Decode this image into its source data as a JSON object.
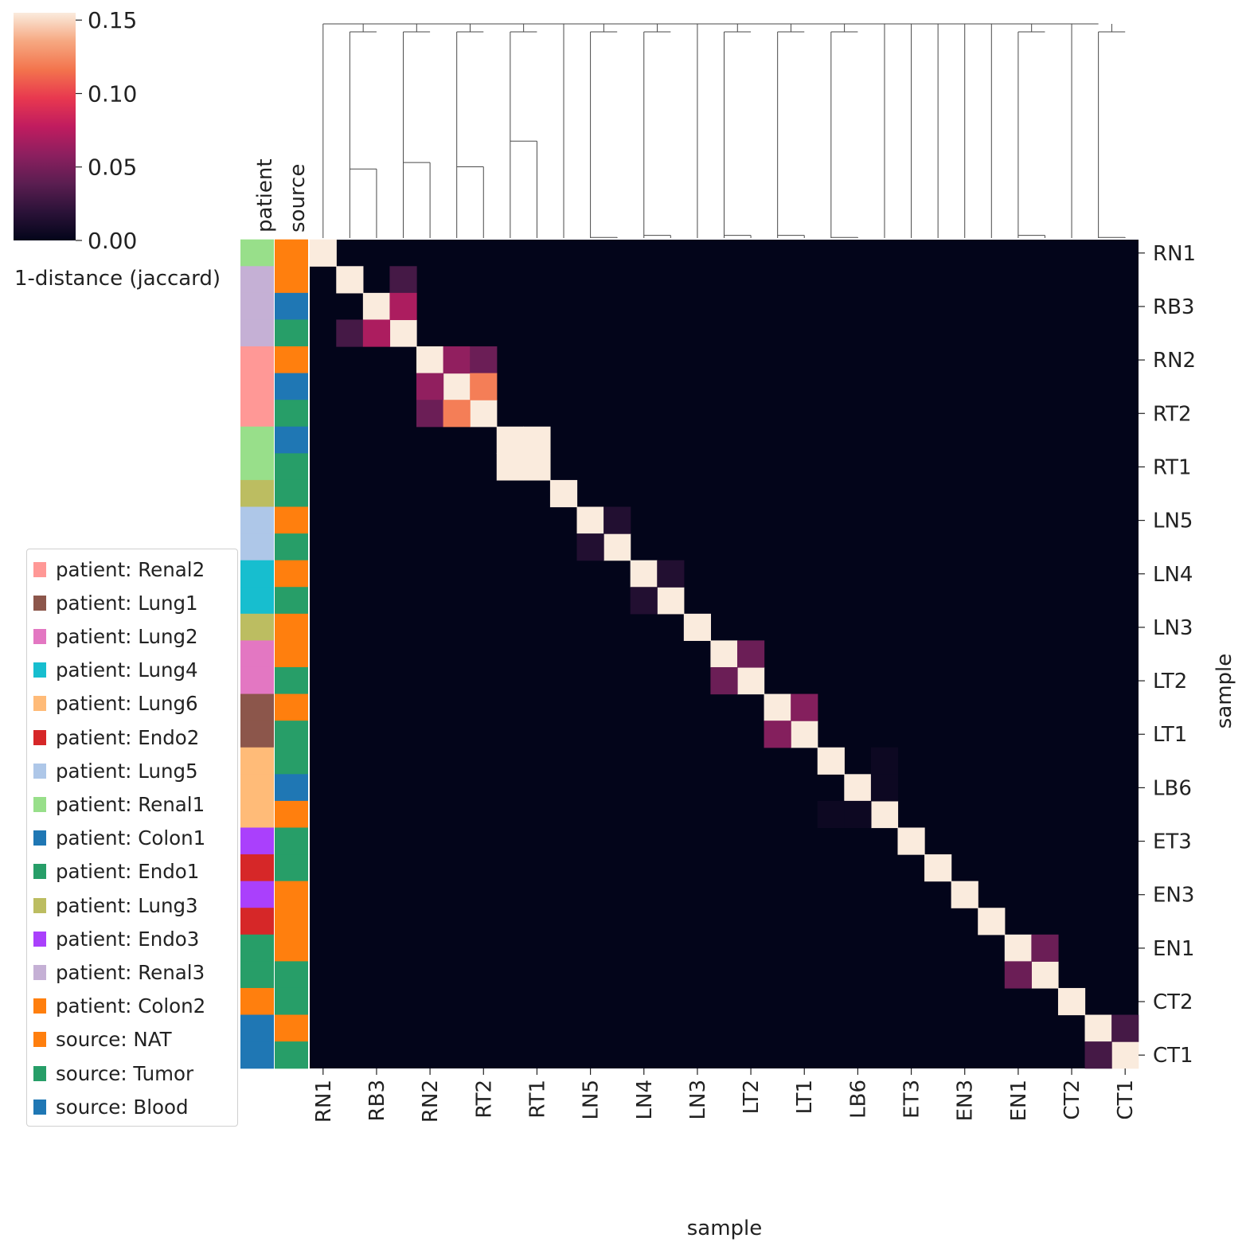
{
  "chart_data": {
    "type": "heatmap",
    "xlabel": "sample",
    "ylabel": "sample",
    "colorbar": {
      "label": "1-distance (jaccard)",
      "ticks": [
        "0.00",
        "0.05",
        "0.10",
        "0.15"
      ],
      "range": [
        0,
        0.155
      ],
      "colormap": "rocket"
    },
    "col_colors_labels": [
      "patient",
      "source"
    ],
    "tick_labels": [
      "RN1",
      "RB3",
      "RN2",
      "RT2",
      "RT1",
      "LN5",
      "LN4",
      "LN3",
      "LT2",
      "LT1",
      "LB6",
      "ET3",
      "EN3",
      "EN1",
      "CT2",
      "CT1"
    ],
    "n_cells": 31,
    "diagonal_value": 0.155,
    "offdiagonal": [
      {
        "i": 1,
        "j": 3,
        "value": 0.03
      },
      {
        "i": 2,
        "j": 3,
        "value": 0.07
      },
      {
        "i": 4,
        "j": 5,
        "value": 0.06
      },
      {
        "i": 4,
        "j": 6,
        "value": 0.045
      },
      {
        "i": 5,
        "j": 6,
        "value": 0.12
      },
      {
        "i": 7,
        "j": 8,
        "value": 0.155
      },
      {
        "i": 10,
        "j": 11,
        "value": 0.015
      },
      {
        "i": 12,
        "j": 13,
        "value": 0.015
      },
      {
        "i": 15,
        "j": 16,
        "value": 0.045
      },
      {
        "i": 17,
        "j": 18,
        "value": 0.055
      },
      {
        "i": 19,
        "j": 21,
        "value": 0.005
      },
      {
        "i": 20,
        "j": 21,
        "value": 0.005
      },
      {
        "i": 26,
        "j": 27,
        "value": 0.045
      },
      {
        "i": 29,
        "j": 30,
        "value": 0.03
      }
    ],
    "row_colors": {
      "patient": [
        "#98df8a",
        "#c5b0d5",
        "#c5b0d5",
        "#c5b0d5",
        "#ff9896",
        "#ff9896",
        "#ff9896",
        "#98df8a",
        "#98df8a",
        "#bcbd61",
        "#aec7e8",
        "#aec7e8",
        "#17becf",
        "#17becf",
        "#bcbd61",
        "#e377c2",
        "#e377c2",
        "#8c564b",
        "#8c564b",
        "#ffbb78",
        "#ffbb78",
        "#ffbb78",
        "#aa40fc",
        "#d62728",
        "#aa40fc",
        "#d62728",
        "#279e68",
        "#279e68",
        "#ff7f0e",
        "#1f77b4",
        "#1f77b4"
      ],
      "source": [
        "#ff7f0e",
        "#ff7f0e",
        "#1f77b4",
        "#279e68",
        "#ff7f0e",
        "#1f77b4",
        "#279e68",
        "#1f77b4",
        "#279e68",
        "#279e68",
        "#ff7f0e",
        "#279e68",
        "#ff7f0e",
        "#279e68",
        "#ff7f0e",
        "#ff7f0e",
        "#279e68",
        "#ff7f0e",
        "#279e68",
        "#279e68",
        "#1f77b4",
        "#ff7f0e",
        "#279e68",
        "#279e68",
        "#ff7f0e",
        "#ff7f0e",
        "#ff7f0e",
        "#279e68",
        "#279e68",
        "#ff7f0e",
        "#279e68"
      ]
    },
    "dendrogram": [
      {
        "left": 1,
        "right": 2,
        "height": 0.33
      },
      {
        "left": 3,
        "right": 4,
        "height": 0.36
      },
      {
        "left": 5,
        "right": 6,
        "height": 0.34
      },
      {
        "left": 7,
        "right": 8,
        "height": 0.46
      },
      {
        "left": 10,
        "right": 11,
        "height": 0.01
      },
      {
        "left": 12,
        "right": 13,
        "height": 0.02
      },
      {
        "left": 15,
        "right": 16,
        "height": 0.02
      },
      {
        "left": 17,
        "right": 18,
        "height": 0.02
      },
      {
        "left": 19,
        "right": 20,
        "height": 0.01
      },
      {
        "left": 26,
        "right": 27,
        "height": 0.02
      },
      {
        "left": 29,
        "right": 30,
        "height": 0.01
      }
    ],
    "legend": [
      {
        "label": "patient: Renal2",
        "color": "#ff9896"
      },
      {
        "label": "patient: Lung1",
        "color": "#8c564b"
      },
      {
        "label": "patient: Lung2",
        "color": "#e377c2"
      },
      {
        "label": "patient: Lung4",
        "color": "#17becf"
      },
      {
        "label": "patient: Lung6",
        "color": "#ffbb78"
      },
      {
        "label": "patient: Endo2",
        "color": "#d62728"
      },
      {
        "label": "patient: Lung5",
        "color": "#aec7e8"
      },
      {
        "label": "patient: Renal1",
        "color": "#98df8a"
      },
      {
        "label": "patient: Colon1",
        "color": "#1f77b4"
      },
      {
        "label": "patient: Endo1",
        "color": "#279e68"
      },
      {
        "label": "patient: Lung3",
        "color": "#bcbd61"
      },
      {
        "label": "patient: Endo3",
        "color": "#aa40fc"
      },
      {
        "label": "patient: Renal3",
        "color": "#c5b0d5"
      },
      {
        "label": "patient: Colon2",
        "color": "#ff7f0e"
      },
      {
        "label": "source: NAT",
        "color": "#ff7f0e"
      },
      {
        "label": "source: Tumor",
        "color": "#279e68"
      },
      {
        "label": "source: Blood",
        "color": "#1f77b4"
      }
    ]
  }
}
